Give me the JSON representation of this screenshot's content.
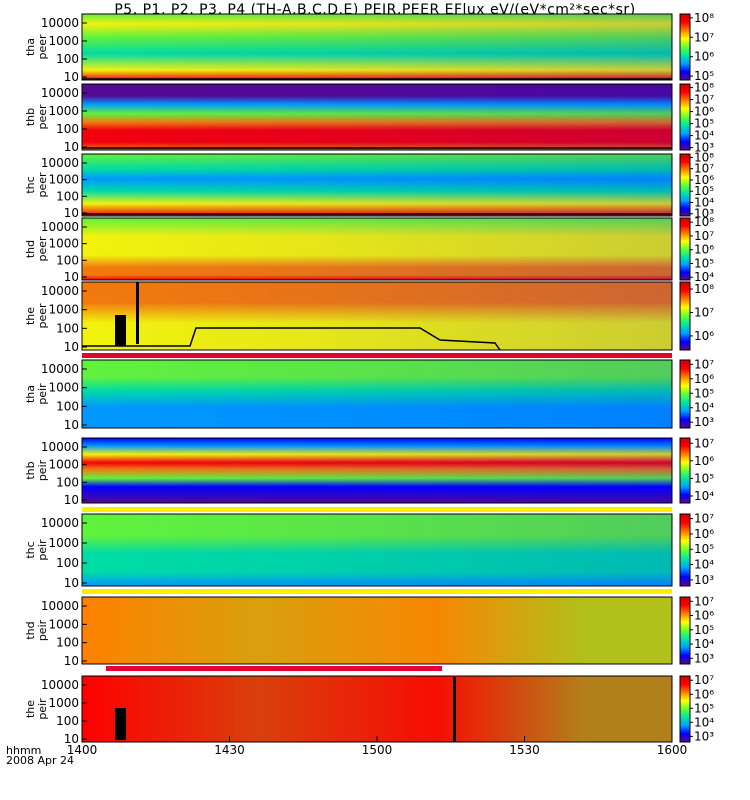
{
  "title": "P5, P1, P2, P3, P4 (TH-A,B,C,D,E) PEIR,PEER EFlux eV/(eV*cm²*sec*sr)",
  "x_axis": {
    "units_label": "hhmm",
    "date_label": "2008 Apr 24",
    "ticks": [
      "1400",
      "1430",
      "1500",
      "1530",
      "1600"
    ]
  },
  "colors": {
    "spectrum": [
      "#5a0a8c",
      "#0000ff",
      "#00a0ff",
      "#00e8a0",
      "#66ff33",
      "#ffff00",
      "#ff8000",
      "#ff0000",
      "#d00000"
    ],
    "bar_red": "#e8002e",
    "bar_yellow": "#ffee00",
    "trace": "#000000"
  },
  "chart_data": {
    "type": "heatmap",
    "x_range": [
      "1400",
      "1600"
    ],
    "y_scale": "log",
    "y_ticks": [
      "10",
      "100",
      "1000",
      "10000"
    ],
    "panels": [
      {
        "id": "tha-peer",
        "label_line1": "tha",
        "label_line2": "peer",
        "colorbar_ticks": [
          "10⁸",
          "10⁷",
          "10⁶",
          "10⁵"
        ],
        "colorbar_range": [
          4.8,
          8.2
        ]
      },
      {
        "id": "thb-peer",
        "label_line1": "thb",
        "label_line2": "peer",
        "colorbar_ticks": [
          "10⁸",
          "10⁷",
          "10⁶",
          "10⁵",
          "10⁴",
          "10³"
        ],
        "colorbar_range": [
          2.8,
          8.3
        ]
      },
      {
        "id": "thc-peer",
        "label_line1": "thc",
        "label_line2": "peer",
        "colorbar_ticks": [
          "10⁸",
          "10⁷",
          "10⁶",
          "10⁵",
          "10⁴",
          "10³"
        ],
        "colorbar_range": [
          2.8,
          8.3
        ]
      },
      {
        "id": "thd-peer",
        "label_line1": "thd",
        "label_line2": "peer",
        "colorbar_ticks": [
          "10⁸",
          "10⁷",
          "10⁶",
          "10⁵",
          "10⁴"
        ],
        "colorbar_range": [
          3.8,
          8.3
        ]
      },
      {
        "id": "the-peer",
        "label_line1": "the",
        "label_line2": "peer",
        "colorbar_ticks": [
          "10⁸",
          "10⁷",
          "10⁶"
        ],
        "colorbar_range": [
          5.4,
          8.3
        ]
      },
      {
        "id": "tha-peir",
        "label_line1": "tha",
        "label_line2": "peir",
        "colorbar_ticks": [
          "10⁷",
          "10⁶",
          "10⁵",
          "10⁴",
          "10³"
        ],
        "colorbar_range": [
          2.6,
          7.3
        ]
      },
      {
        "id": "thb-peir",
        "label_line1": "thb",
        "label_line2": "peir",
        "colorbar_ticks": [
          "10⁷",
          "10⁶",
          "10⁵",
          "10⁴"
        ],
        "colorbar_range": [
          3.6,
          7.3
        ]
      },
      {
        "id": "thc-peir",
        "label_line1": "thc",
        "label_line2": "peir",
        "colorbar_ticks": [
          "10⁷",
          "10⁶",
          "10⁵",
          "10⁴",
          "10³"
        ],
        "colorbar_range": [
          2.6,
          7.3
        ]
      },
      {
        "id": "thd-peir",
        "label_line1": "thd",
        "label_line2": "peir",
        "colorbar_ticks": [
          "10⁷",
          "10⁶",
          "10⁵",
          "10⁴",
          "10³"
        ],
        "colorbar_range": [
          2.6,
          7.3
        ]
      },
      {
        "id": "the-peir",
        "label_line1": "the",
        "label_line2": "peir",
        "colorbar_ticks": [
          "10⁷",
          "10⁶",
          "10⁵",
          "10⁴",
          "10³"
        ],
        "colorbar_range": [
          2.6,
          7.3
        ]
      }
    ]
  }
}
